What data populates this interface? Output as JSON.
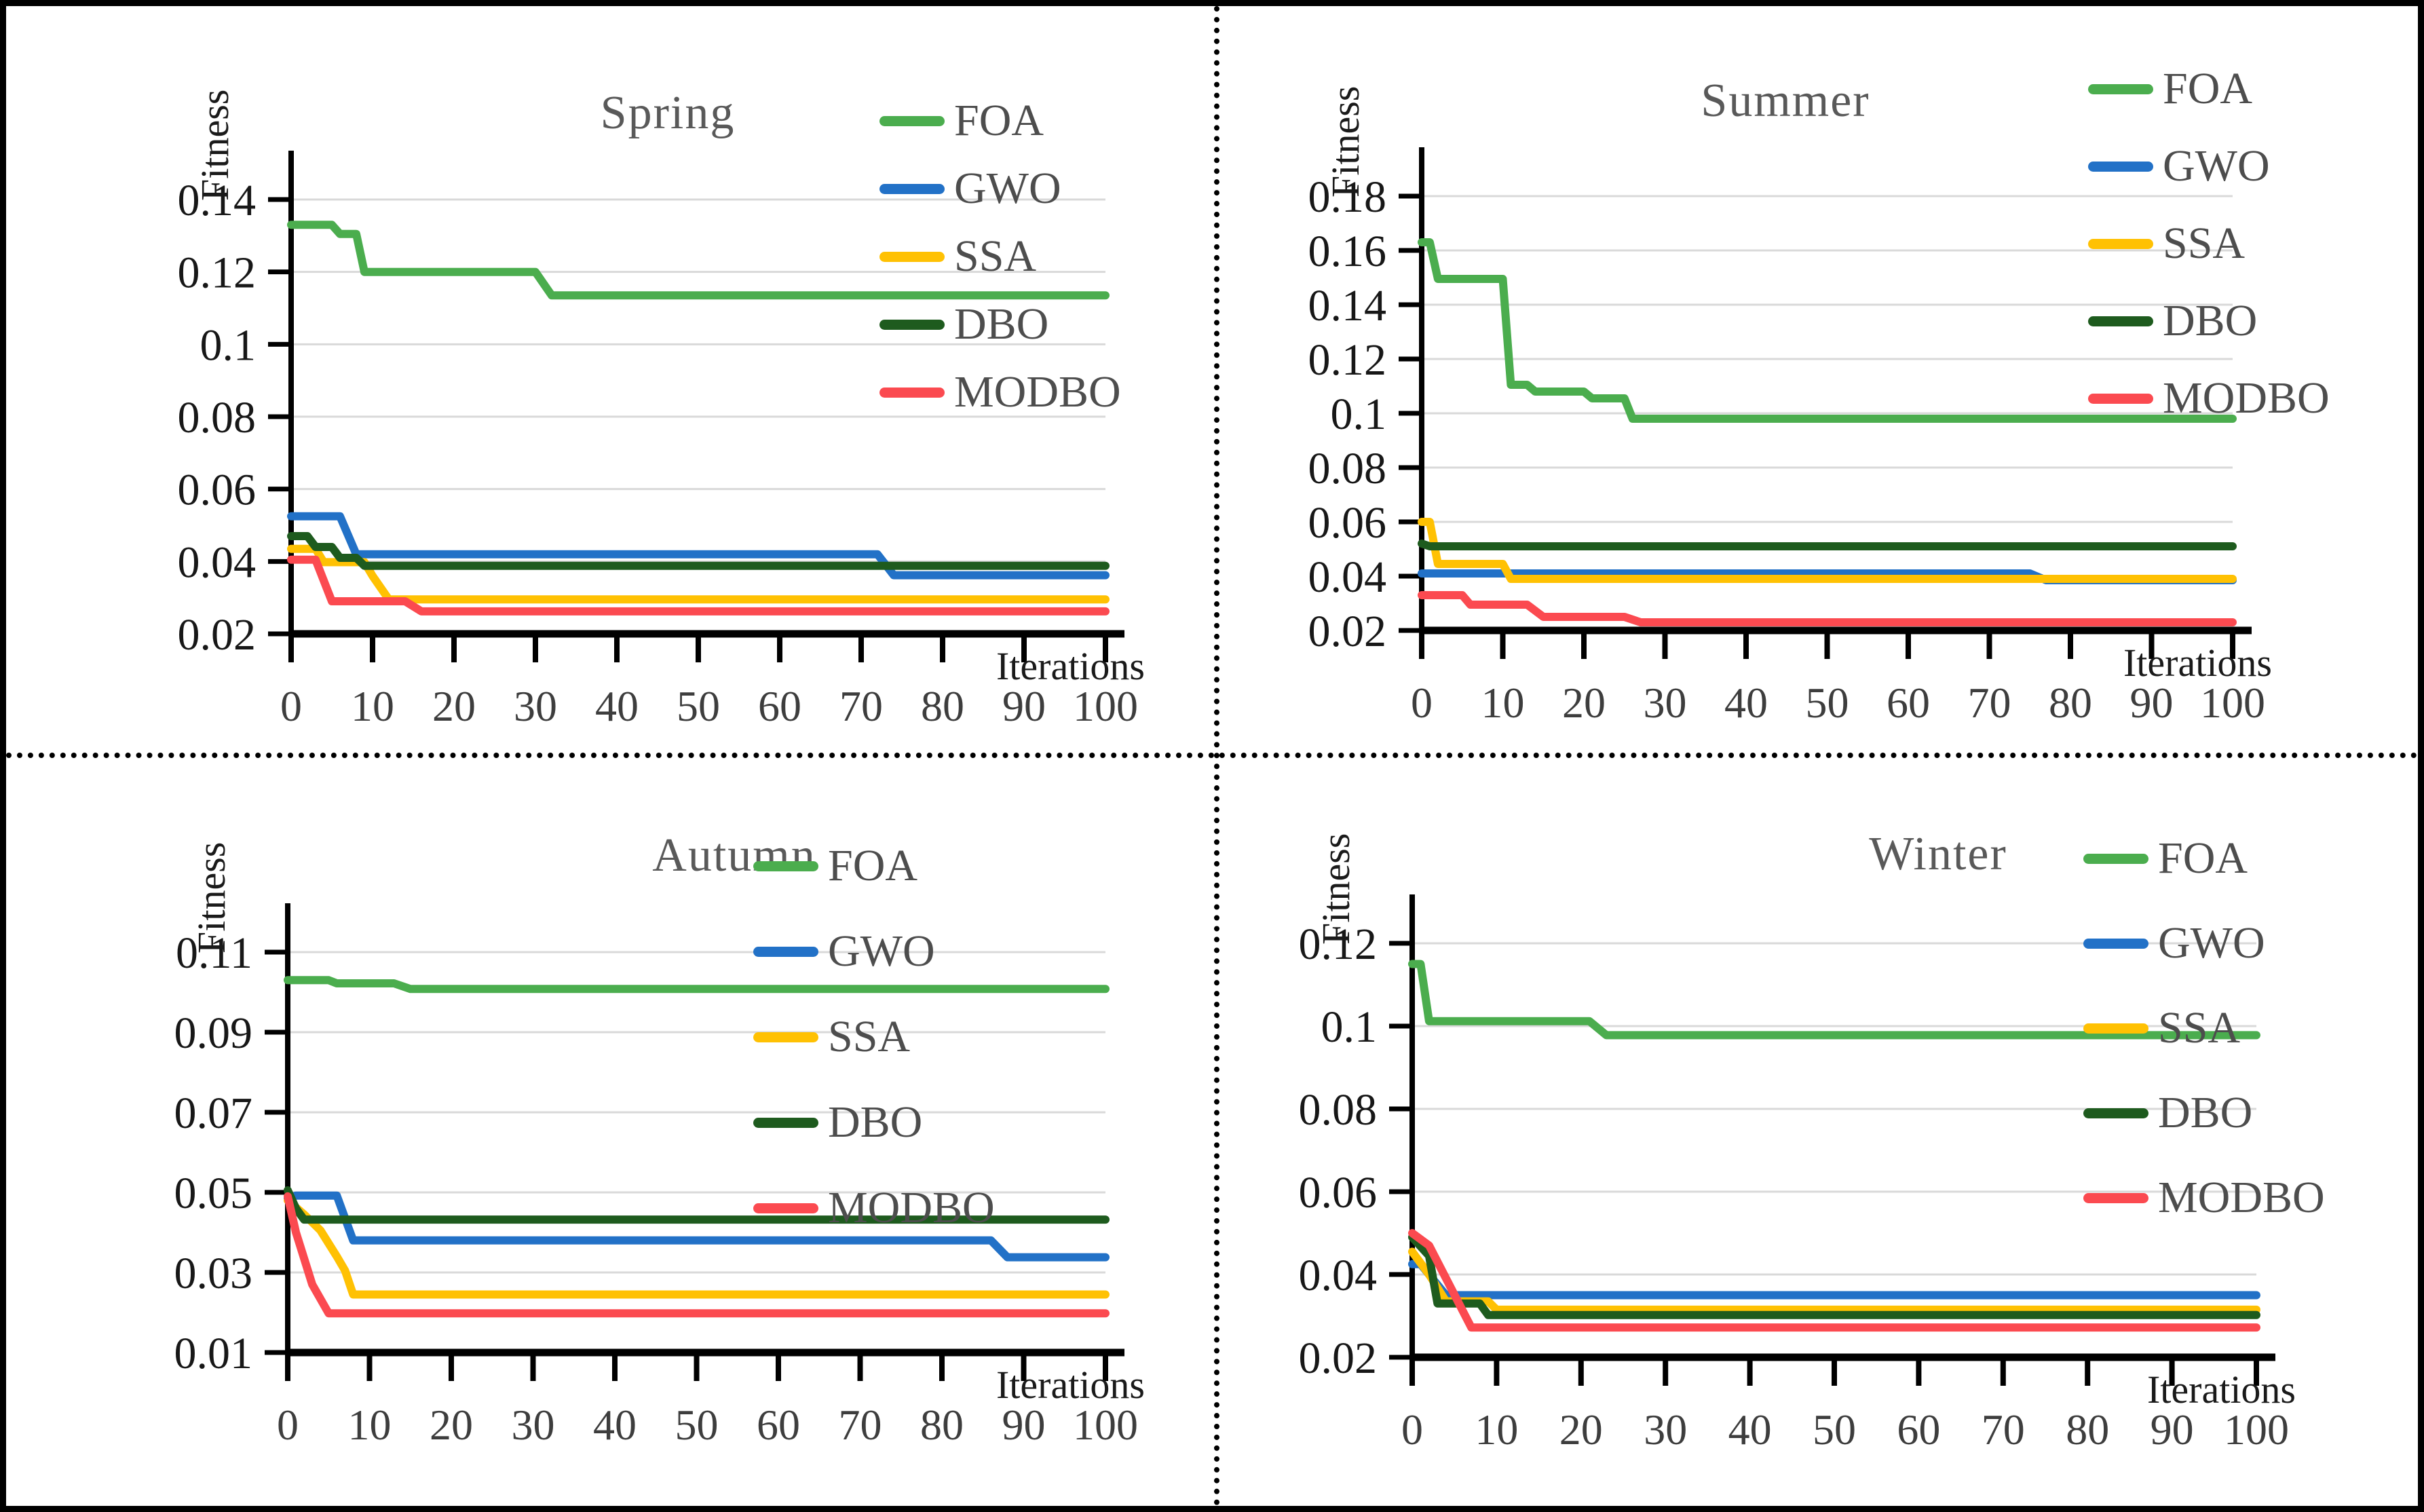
{
  "figure": {
    "background": "#ffffff",
    "border_color": "#000000",
    "grid_color": "#d9d9d9",
    "axis_color": "#000000",
    "title_color": "#595959"
  },
  "legend": {
    "items": [
      {
        "label": "FOA",
        "color": "#4BAD4E"
      },
      {
        "label": "GWO",
        "color": "#2271C7"
      },
      {
        "label": "SSA",
        "color": "#FFC103"
      },
      {
        "label": "DBO",
        "color": "#1E5B1E"
      },
      {
        "label": "MODBO",
        "color": "#FB4A50"
      }
    ]
  },
  "chart_data": [
    {
      "type": "line",
      "title": "Spring",
      "xlabel": "Iterations",
      "ylabel": "Fitness",
      "xlim": [
        0,
        100
      ],
      "xticks": [
        0,
        10,
        20,
        30,
        40,
        50,
        60,
        70,
        80,
        90,
        100
      ],
      "ylim": [
        0.02,
        0.14
      ],
      "yticks": [
        0.14,
        0.12,
        0.1,
        0.08,
        0.06,
        0.04,
        0.02
      ],
      "ytick_labels": [
        "0.14",
        "0.12",
        "0.1",
        "0.08",
        "0.06",
        "0.04",
        "0.02"
      ],
      "grid": "horizontal",
      "legend_position": "right-inside",
      "series": [
        {
          "name": "FOA",
          "color": "#4BAD4E",
          "points": [
            [
              0,
              0.133
            ],
            [
              5,
              0.133
            ],
            [
              6,
              0.1305
            ],
            [
              8,
              0.1305
            ],
            [
              9,
              0.12
            ],
            [
              30,
              0.12
            ],
            [
              32,
              0.1135
            ],
            [
              100,
              0.1135
            ]
          ]
        },
        {
          "name": "GWO",
          "color": "#2271C7",
          "points": [
            [
              0,
              0.0525
            ],
            [
              6,
              0.0525
            ],
            [
              8,
              0.042
            ],
            [
              72,
              0.042
            ],
            [
              74,
              0.0362
            ],
            [
              100,
              0.0362
            ]
          ]
        },
        {
          "name": "SSA",
          "color": "#FFC103",
          "points": [
            [
              0,
              0.0435
            ],
            [
              3,
              0.0435
            ],
            [
              4,
              0.0398
            ],
            [
              9,
              0.0398
            ],
            [
              10,
              0.036
            ],
            [
              12,
              0.0295
            ],
            [
              100,
              0.0295
            ]
          ]
        },
        {
          "name": "DBO",
          "color": "#1E5B1E",
          "points": [
            [
              0,
              0.047
            ],
            [
              2,
              0.047
            ],
            [
              3,
              0.044
            ],
            [
              5,
              0.044
            ],
            [
              6,
              0.041
            ],
            [
              8,
              0.041
            ],
            [
              9,
              0.0388
            ],
            [
              100,
              0.0388
            ]
          ]
        },
        {
          "name": "MODBO",
          "color": "#FB4A50",
          "points": [
            [
              0,
              0.0405
            ],
            [
              3,
              0.0405
            ],
            [
              5,
              0.029
            ],
            [
              14,
              0.029
            ],
            [
              16,
              0.0262
            ],
            [
              100,
              0.0262
            ]
          ]
        }
      ]
    },
    {
      "type": "line",
      "title": "Summer",
      "xlabel": "Iterations",
      "ylabel": "Fitness",
      "xlim": [
        0,
        100
      ],
      "xticks": [
        0,
        10,
        20,
        30,
        40,
        50,
        60,
        70,
        80,
        90,
        100
      ],
      "ylim": [
        0.02,
        0.18
      ],
      "yticks": [
        0.18,
        0.16,
        0.14,
        0.12,
        0.1,
        0.08,
        0.06,
        0.04,
        0.02
      ],
      "ytick_labels": [
        "0.18",
        "0.16",
        "0.14",
        "0.12",
        "0.1",
        "0.08",
        "0.06",
        "0.04",
        "0.02"
      ],
      "grid": "horizontal",
      "legend_position": "right-inside",
      "series": [
        {
          "name": "FOA",
          "color": "#4BAD4E",
          "points": [
            [
              0,
              0.163
            ],
            [
              1,
              0.163
            ],
            [
              2,
              0.1495
            ],
            [
              10,
              0.1495
            ],
            [
              11,
              0.1105
            ],
            [
              13,
              0.1105
            ],
            [
              14,
              0.108
            ],
            [
              20,
              0.108
            ],
            [
              21,
              0.1055
            ],
            [
              25,
              0.1055
            ],
            [
              26,
              0.098
            ],
            [
              100,
              0.098
            ]
          ]
        },
        {
          "name": "GWO",
          "color": "#2271C7",
          "points": [
            [
              0,
              0.041
            ],
            [
              75,
              0.041
            ],
            [
              77,
              0.0385
            ],
            [
              100,
              0.0385
            ]
          ]
        },
        {
          "name": "SSA",
          "color": "#FFC103",
          "points": [
            [
              0,
              0.06
            ],
            [
              1,
              0.06
            ],
            [
              2,
              0.0445
            ],
            [
              10,
              0.0445
            ],
            [
              11,
              0.039
            ],
            [
              100,
              0.039
            ]
          ]
        },
        {
          "name": "DBO",
          "color": "#1E5B1E",
          "points": [
            [
              0,
              0.052
            ],
            [
              1,
              0.051
            ],
            [
              100,
              0.051
            ]
          ]
        },
        {
          "name": "MODBO",
          "color": "#FB4A50",
          "points": [
            [
              0,
              0.033
            ],
            [
              5,
              0.033
            ],
            [
              6,
              0.0295
            ],
            [
              13,
              0.0295
            ],
            [
              15,
              0.025
            ],
            [
              25,
              0.025
            ],
            [
              27,
              0.023
            ],
            [
              100,
              0.023
            ]
          ]
        }
      ]
    },
    {
      "type": "line",
      "title": "Autumn",
      "xlabel": "Iterations",
      "ylabel": "Fitness",
      "xlim": [
        0,
        100
      ],
      "xticks": [
        0,
        10,
        20,
        30,
        40,
        50,
        60,
        70,
        80,
        90,
        100
      ],
      "ylim": [
        0.01,
        0.11
      ],
      "yticks": [
        0.11,
        0.09,
        0.07,
        0.05,
        0.03,
        0.01
      ],
      "ytick_labels": [
        "0.11",
        "0.09",
        "0.07",
        "0.05",
        "0.03",
        "0.01"
      ],
      "grid": "horizontal",
      "legend_position": "right-inside",
      "series": [
        {
          "name": "FOA",
          "color": "#4BAD4E",
          "points": [
            [
              0,
              0.103
            ],
            [
              5,
              0.103
            ],
            [
              6,
              0.1022
            ],
            [
              13,
              0.1022
            ],
            [
              15,
              0.1008
            ],
            [
              100,
              0.1008
            ]
          ]
        },
        {
          "name": "GWO",
          "color": "#2271C7",
          "points": [
            [
              0,
              0.0485
            ],
            [
              1,
              0.0492
            ],
            [
              6,
              0.0492
            ],
            [
              8,
              0.038
            ],
            [
              86,
              0.038
            ],
            [
              88,
              0.0338
            ],
            [
              100,
              0.0338
            ]
          ]
        },
        {
          "name": "SSA",
          "color": "#FFC103",
          "points": [
            [
              0,
              0.048
            ],
            [
              2,
              0.0445
            ],
            [
              4,
              0.0405
            ],
            [
              6,
              0.034
            ],
            [
              7,
              0.0305
            ],
            [
              8,
              0.0245
            ],
            [
              100,
              0.0245
            ]
          ]
        },
        {
          "name": "DBO",
          "color": "#1E5B1E",
          "points": [
            [
              0,
              0.0505
            ],
            [
              1,
              0.046
            ],
            [
              2,
              0.0432
            ],
            [
              100,
              0.0432
            ]
          ]
        },
        {
          "name": "MODBO",
          "color": "#FB4A50",
          "points": [
            [
              0,
              0.049
            ],
            [
              1,
              0.04
            ],
            [
              3,
              0.027
            ],
            [
              5,
              0.0198
            ],
            [
              100,
              0.0198
            ]
          ]
        }
      ]
    },
    {
      "type": "line",
      "title": "Winter",
      "xlabel": "Iterations",
      "ylabel": "Fitness",
      "xlim": [
        0,
        100
      ],
      "xticks": [
        0,
        10,
        20,
        30,
        40,
        50,
        60,
        70,
        80,
        90,
        100
      ],
      "ylim": [
        0.02,
        0.12
      ],
      "yticks": [
        0.12,
        0.1,
        0.08,
        0.06,
        0.04,
        0.02
      ],
      "ytick_labels": [
        "0.12",
        "0.1",
        "0.08",
        "0.06",
        "0.04",
        "0.02"
      ],
      "grid": "horizontal",
      "legend_position": "right-inside",
      "series": [
        {
          "name": "FOA",
          "color": "#4BAD4E",
          "points": [
            [
              0,
              0.115
            ],
            [
              1,
              0.115
            ],
            [
              2,
              0.1012
            ],
            [
              21,
              0.1012
            ],
            [
              23,
              0.0978
            ],
            [
              100,
              0.0978
            ]
          ]
        },
        {
          "name": "GWO",
          "color": "#2271C7",
          "points": [
            [
              0,
              0.0425
            ],
            [
              1,
              0.0425
            ],
            [
              4,
              0.035
            ],
            [
              100,
              0.035
            ]
          ]
        },
        {
          "name": "SSA",
          "color": "#FFC103",
          "points": [
            [
              0,
              0.0455
            ],
            [
              2,
              0.04
            ],
            [
              4,
              0.0335
            ],
            [
              9,
              0.0335
            ],
            [
              10,
              0.0315
            ],
            [
              100,
              0.0315
            ]
          ]
        },
        {
          "name": "DBO",
          "color": "#1E5B1E",
          "points": [
            [
              0,
              0.049
            ],
            [
              2,
              0.0445
            ],
            [
              3,
              0.033
            ],
            [
              8,
              0.033
            ],
            [
              9,
              0.0302
            ],
            [
              100,
              0.0302
            ]
          ]
        },
        {
          "name": "MODBO",
          "color": "#FB4A50",
          "points": [
            [
              0,
              0.05
            ],
            [
              2,
              0.047
            ],
            [
              7,
              0.0272
            ],
            [
              100,
              0.0272
            ]
          ]
        }
      ]
    }
  ]
}
